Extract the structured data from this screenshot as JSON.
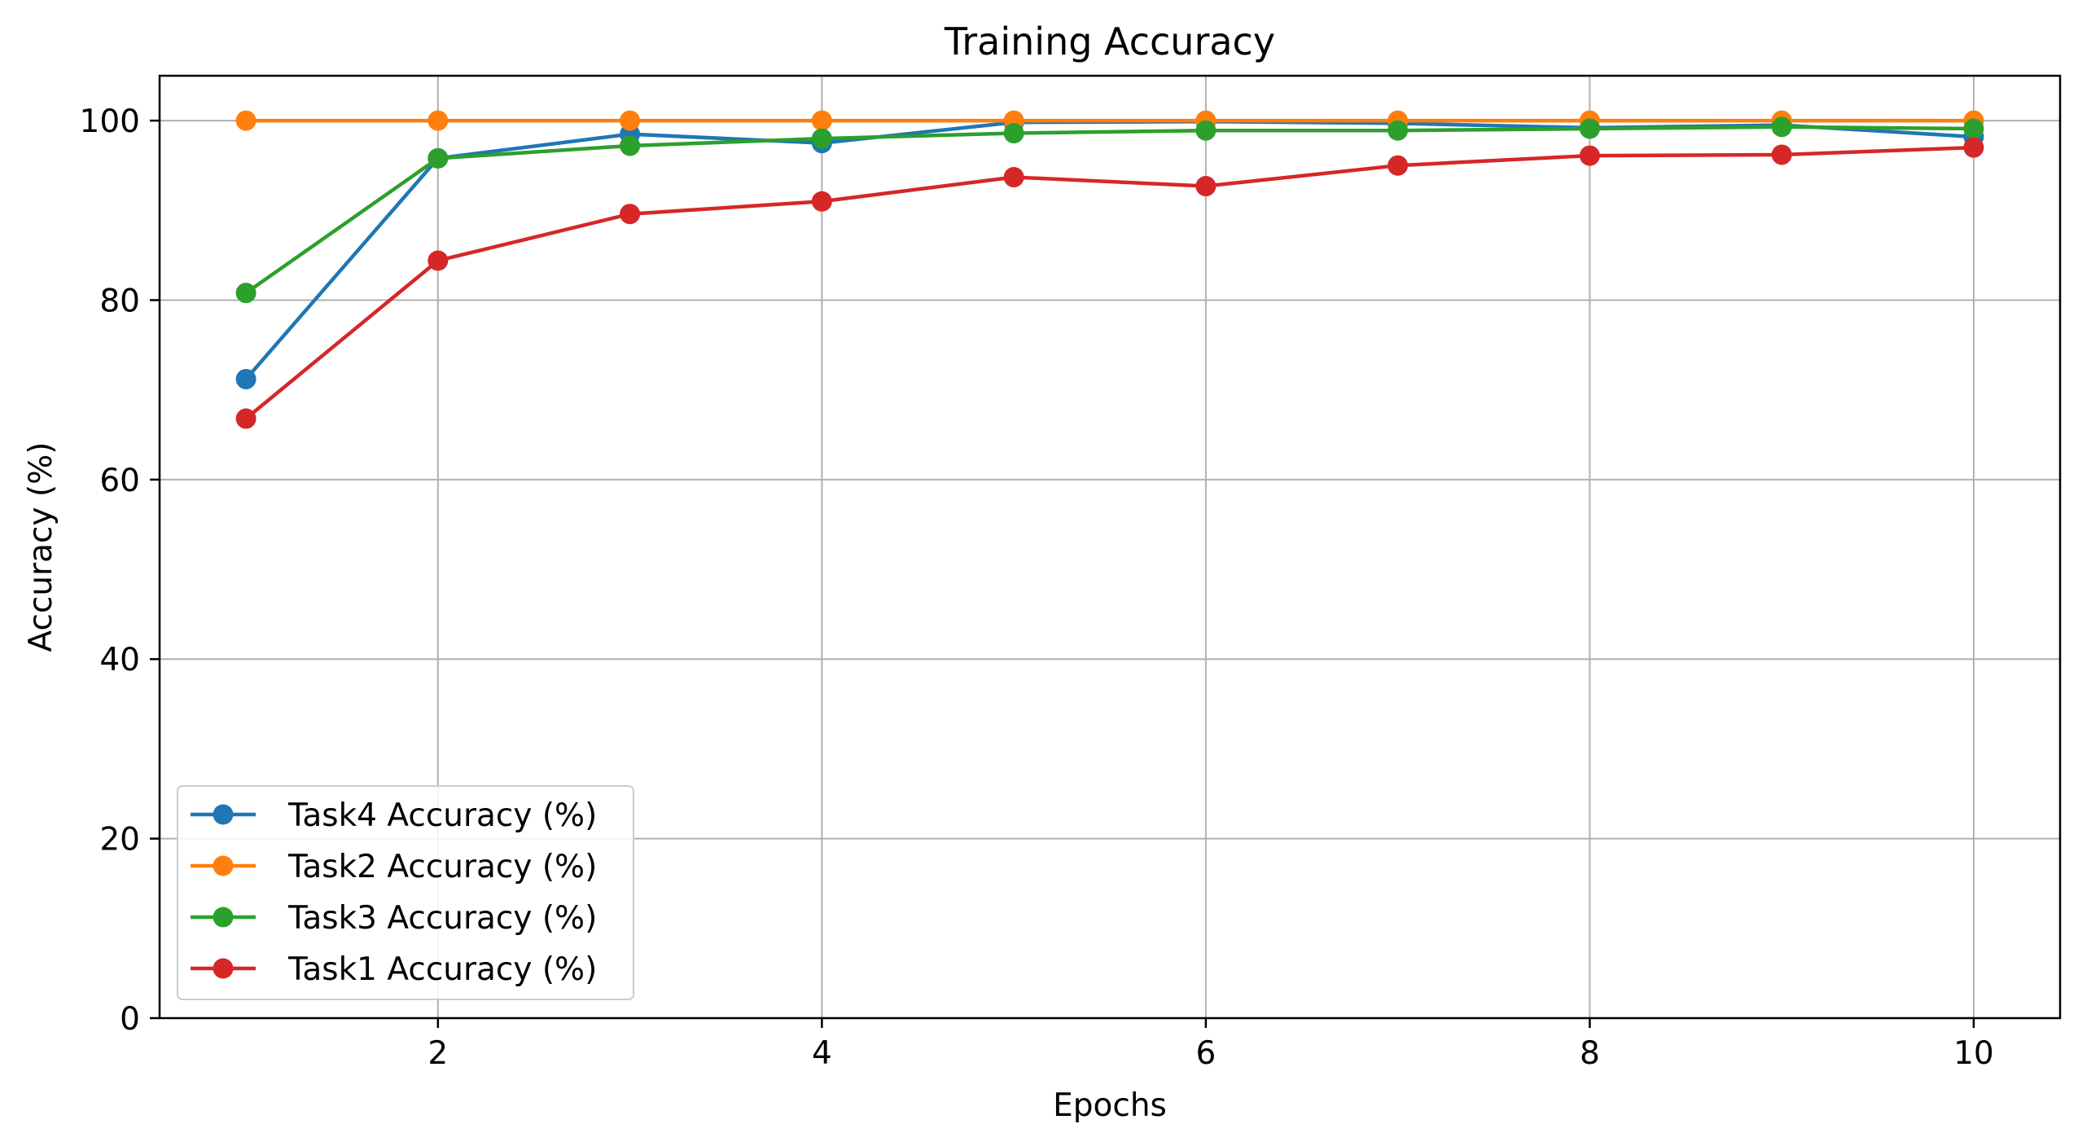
{
  "chart_data": {
    "type": "line",
    "title": "Training  Accuracy",
    "xlabel": "Epochs",
    "ylabel": "Accuracy (%)",
    "x": [
      1,
      2,
      3,
      4,
      5,
      6,
      7,
      8,
      9,
      10
    ],
    "xlim": [
      0.55,
      10.45
    ],
    "ylim": [
      0,
      105
    ],
    "xticks": [
      2,
      4,
      6,
      8,
      10
    ],
    "yticks": [
      0,
      20,
      40,
      60,
      80,
      100
    ],
    "grid": true,
    "legend_position": "lower-left",
    "marker": "circle",
    "series": [
      {
        "name": "Task4 Accuracy (%)",
        "color": "#1f77b4",
        "values": [
          71.2,
          95.8,
          98.5,
          97.5,
          99.8,
          99.9,
          99.7,
          99.2,
          99.5,
          98.2
        ]
      },
      {
        "name": "Task2 Accuracy (%)",
        "color": "#ff7f0e",
        "values": [
          100,
          100,
          100,
          100,
          100,
          100,
          100,
          100,
          100,
          100
        ]
      },
      {
        "name": "Task3 Accuracy (%)",
        "color": "#2ca02c",
        "values": [
          80.8,
          95.8,
          97.2,
          98.0,
          98.6,
          98.9,
          98.9,
          99.1,
          99.3,
          99.1
        ]
      },
      {
        "name": "Task1 Accuracy (%)",
        "color": "#d62728",
        "values": [
          66.8,
          84.4,
          89.6,
          91.0,
          93.7,
          92.7,
          95.0,
          96.1,
          96.2,
          97.0
        ]
      }
    ]
  }
}
